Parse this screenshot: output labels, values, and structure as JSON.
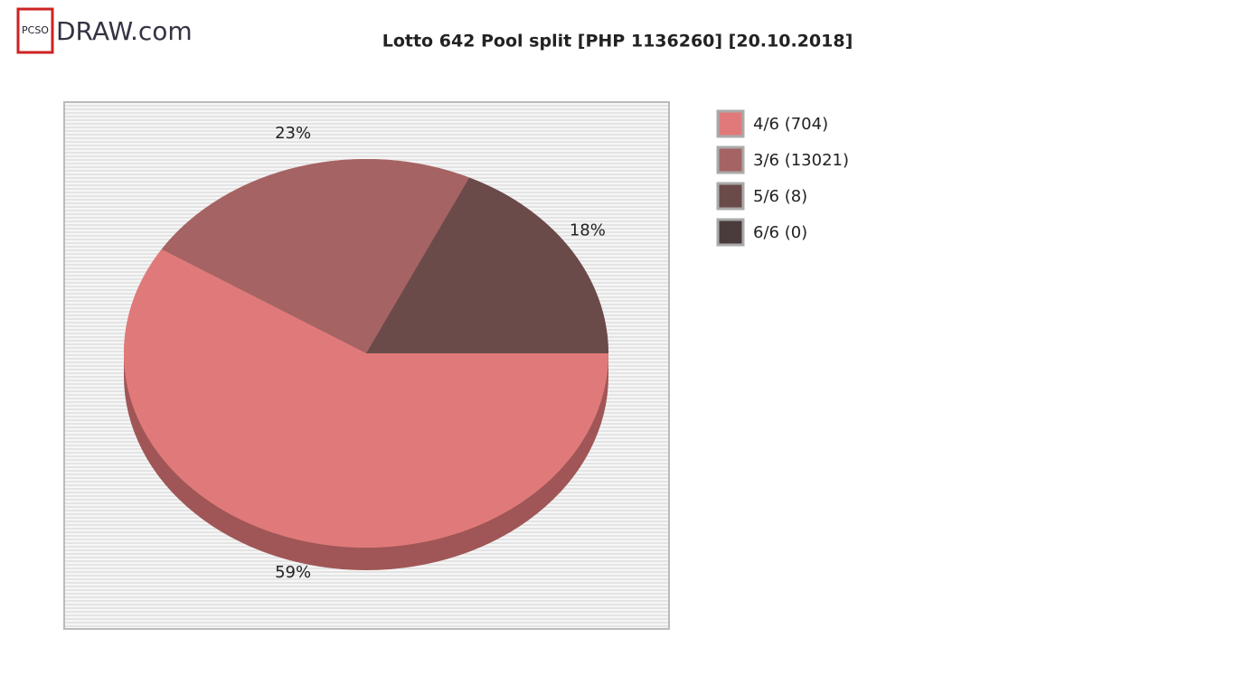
{
  "logo": {
    "badge": "PCSO",
    "text": "DRAW.com"
  },
  "chart_data": {
    "type": "pie",
    "title": "Lotto 642 Pool split [PHP 1136260] [20.10.2018]",
    "categories": [
      "4/6 (704)",
      "3/6 (13021)",
      "5/6 (8)",
      "6/6 (0)"
    ],
    "values": [
      59,
      23,
      18,
      0
    ],
    "value_labels": [
      "59%",
      "23%",
      "18%",
      null
    ],
    "colors": [
      "#e07a7a",
      "#a56363",
      "#6b4a4a",
      "#4a3b3d"
    ],
    "legend": "right"
  }
}
